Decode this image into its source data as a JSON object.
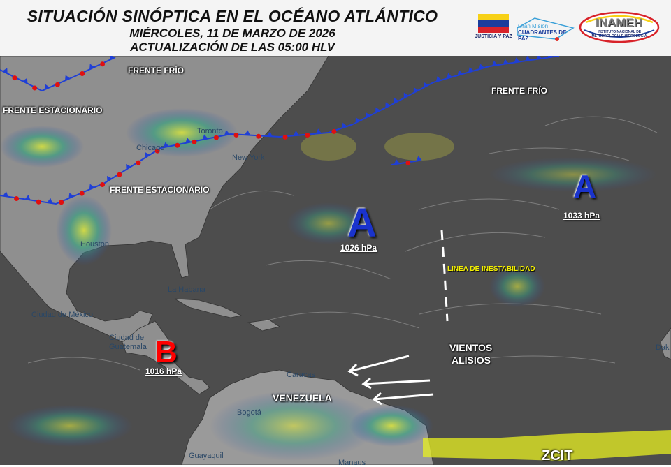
{
  "header": {
    "title": "SITUACIÓN SINÓPTICA EN EL OCÉANO ATLÁNTICO",
    "date": "MIÉRCOLES, 11 DE MARZO DE 2026",
    "update": "ACTUALIZACIÓN DE LAS 05:00 HLV"
  },
  "logos": {
    "justicia": "JUSTICIA Y PAZ",
    "cuadrantes_top": "Gran Misión",
    "cuadrantes_bottom": "CUADRANTES DE PAZ",
    "inameh": "INAMEH",
    "inameh_sub": "INSTITUTO NACIONAL DE METEOROLOGÍA E HIDROLOGÍA"
  },
  "colors": {
    "high": "#1a33cc",
    "low": "#ff0000",
    "cold_front": "#1f3fd6",
    "warm_front": "#e01010",
    "zcit": "#e8f020",
    "ocean": "#4d4d4d",
    "land": "#9a9a9a"
  },
  "systems": {
    "high_west": {
      "letter": "A",
      "pressure": "1026 hPa"
    },
    "high_east": {
      "letter": "A",
      "pressure": "1033 hPa"
    },
    "low": {
      "letter": "B",
      "pressure": "1016 hPa"
    }
  },
  "labels": {
    "frente_frio_nw": "FRENTE FRÍO",
    "frente_frio_ne": "FRENTE FRÍO",
    "frente_estacionario_n": "FRENTE ESTACIONARIO",
    "frente_estacionario_s": "FRENTE ESTACIONARIO",
    "linea": "LINEA  DE INESTABILIDAD",
    "vientos": "VIENTOS",
    "alisios": "ALISIOS",
    "venezuela": "VENEZUELA",
    "zcit": "ZCIT"
  },
  "cities": {
    "toronto": "Toronto",
    "chicago": "Chicago",
    "new_york": "New York",
    "houston": "Houston",
    "habana": "La Habana",
    "mexico": "Ciudad de México",
    "guatemala_1": "Ciudad de",
    "guatemala_2": "Guatemala",
    "caracas": "Caracas",
    "bogota": "Bogotá",
    "guayaquil": "Guayaquil",
    "manaus": "Manaus",
    "dakar": "Dak"
  }
}
